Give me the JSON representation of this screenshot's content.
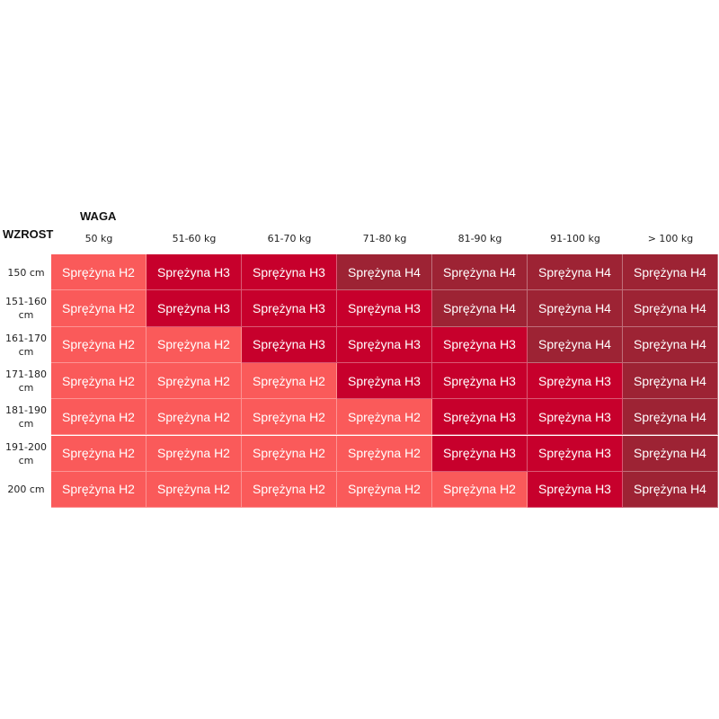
{
  "header": {
    "weight_label": "WAGA",
    "height_label": "WZROST",
    "columns": [
      "50 kg",
      "51-60 kg",
      "61-70 kg",
      "71-80 kg",
      "81-90 kg",
      "91-100 kg",
      "> 100 kg"
    ]
  },
  "table": {
    "rows": [
      {
        "label": "150 cm",
        "cells": [
          {
            "text": "Sprężyna H2",
            "color": "#fa5a5a"
          },
          {
            "text": "Sprężyna H3",
            "color": "#c7002c"
          },
          {
            "text": "Sprężyna H3",
            "color": "#c7002c"
          },
          {
            "text": "Sprężyna H4",
            "color": "#9d2334"
          },
          {
            "text": "Sprężyna H4",
            "color": "#9d2334"
          },
          {
            "text": "Sprężyna H4",
            "color": "#9d2334"
          },
          {
            "text": "Sprężyna H4",
            "color": "#9d2334"
          }
        ]
      },
      {
        "label": "151-160 cm",
        "cells": [
          {
            "text": "Sprężyna H2",
            "color": "#fa5a5a"
          },
          {
            "text": "Sprężyna H3",
            "color": "#c7002c"
          },
          {
            "text": "Sprężyna H3",
            "color": "#c7002c"
          },
          {
            "text": "Sprężyna H3",
            "color": "#c7002c"
          },
          {
            "text": "Sprężyna H4",
            "color": "#9d2334"
          },
          {
            "text": "Sprężyna H4",
            "color": "#9d2334"
          },
          {
            "text": "Sprężyna H4",
            "color": "#9d2334"
          }
        ]
      },
      {
        "label": "161-170 cm",
        "cells": [
          {
            "text": "Sprężyna H2",
            "color": "#fa5a5a"
          },
          {
            "text": "Sprężyna H2",
            "color": "#fa5a5a"
          },
          {
            "text": "Sprężyna H3",
            "color": "#c7002c"
          },
          {
            "text": "Sprężyna H3",
            "color": "#c7002c"
          },
          {
            "text": "Sprężyna H3",
            "color": "#c7002c"
          },
          {
            "text": "Sprężyna H4",
            "color": "#9d2334"
          },
          {
            "text": "Sprężyna H4",
            "color": "#9d2334"
          }
        ]
      },
      {
        "label": "171-180 cm",
        "cells": [
          {
            "text": "Sprężyna H2",
            "color": "#fa5a5a"
          },
          {
            "text": "Sprężyna H2",
            "color": "#fa5a5a"
          },
          {
            "text": "Sprężyna H2",
            "color": "#fa5a5a"
          },
          {
            "text": "Sprężyna H3",
            "color": "#c7002c"
          },
          {
            "text": "Sprężyna H3",
            "color": "#c7002c"
          },
          {
            "text": "Sprężyna H3",
            "color": "#c7002c"
          },
          {
            "text": "Sprężyna H4",
            "color": "#9d2334"
          }
        ]
      },
      {
        "label": "181-190 cm",
        "cells": [
          {
            "text": "Sprężyna H2",
            "color": "#fa5a5a"
          },
          {
            "text": "Sprężyna H2",
            "color": "#fa5a5a"
          },
          {
            "text": "Sprężyna H2",
            "color": "#fa5a5a"
          },
          {
            "text": "Sprężyna H2",
            "color": "#fa5a5a"
          },
          {
            "text": "Sprężyna H3",
            "color": "#c7002c"
          },
          {
            "text": "Sprężyna H3",
            "color": "#c7002c"
          },
          {
            "text": "Sprężyna H4",
            "color": "#9d2334"
          }
        ]
      },
      {
        "label": "191-200 cm",
        "cells": [
          {
            "text": "Sprężyna H2",
            "color": "#fa5a5a"
          },
          {
            "text": "Sprężyna H2",
            "color": "#fa5a5a"
          },
          {
            "text": "Sprężyna H2",
            "color": "#fa5a5a"
          },
          {
            "text": "Sprężyna H2",
            "color": "#fa5a5a"
          },
          {
            "text": "Sprężyna H3",
            "color": "#c7002c"
          },
          {
            "text": "Sprężyna H3",
            "color": "#c7002c"
          },
          {
            "text": "Sprężyna H4",
            "color": "#9d2334"
          }
        ]
      },
      {
        "label": "200 cm",
        "cells": [
          {
            "text": "Sprężyna H2",
            "color": "#fa5a5a"
          },
          {
            "text": "Sprężyna H2",
            "color": "#fa5a5a"
          },
          {
            "text": "Sprężyna H2",
            "color": "#fa5a5a"
          },
          {
            "text": "Sprężyna H2",
            "color": "#fa5a5a"
          },
          {
            "text": "Sprężyna H2",
            "color": "#fa5a5a"
          },
          {
            "text": "Sprężyna H3",
            "color": "#c7002c"
          },
          {
            "text": "Sprężyna H4",
            "color": "#9d2334"
          }
        ]
      }
    ]
  }
}
